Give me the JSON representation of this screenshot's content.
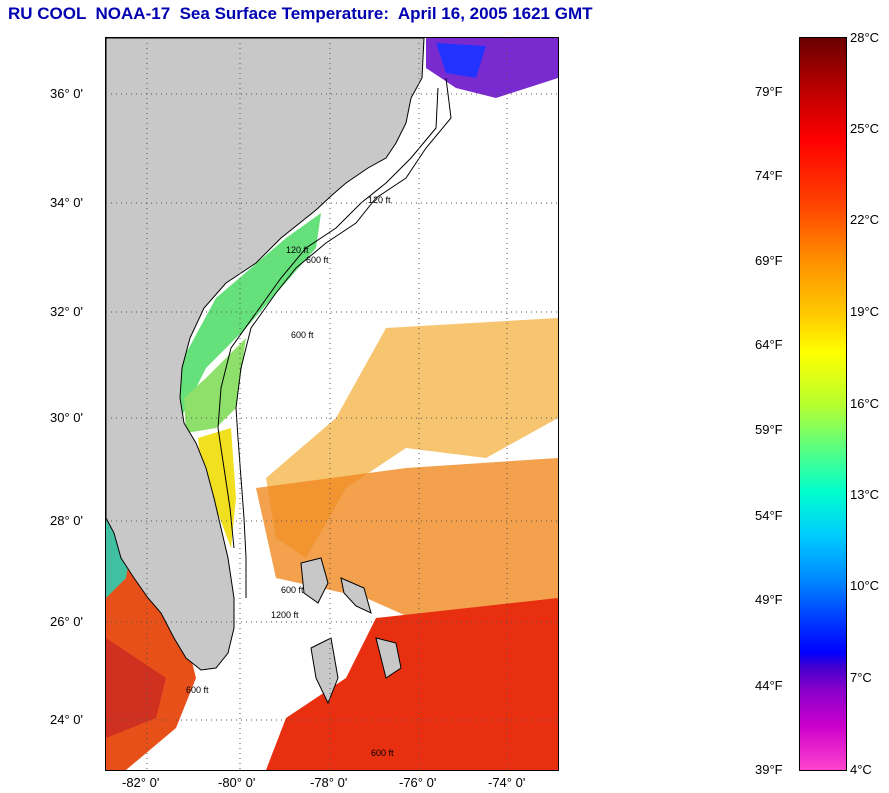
{
  "title": "RU COOL  NOAA-17  Sea Surface Temperature:  April 16, 2005 1621 GMT",
  "map": {
    "lat_labels": [
      "36° 0'",
      "34° 0'",
      "32° 0'",
      "30° 0'",
      "28° 0'",
      "26° 0'",
      "24° 0'"
    ],
    "lon_labels": [
      "-82° 0'",
      "-80° 0'",
      "-78° 0'",
      "-76° 0'",
      "-74° 0'"
    ],
    "contour_labels": [
      "120 ft",
      "600 ft",
      "120 ft",
      "600 ft",
      "1200 ft",
      "600 ft",
      "600 ft",
      "600 ft"
    ],
    "colors": {
      "land": "#c8c8c8",
      "no_data": "#ffffff",
      "grid": "#555555"
    }
  },
  "colorbar": {
    "fahrenheit_labels": [
      "79°F",
      "74°F",
      "69°F",
      "64°F",
      "59°F",
      "54°F",
      "49°F",
      "44°F",
      "39°F"
    ],
    "celsius_labels": [
      "28°C",
      "25°C",
      "22°C",
      "19°C",
      "16°C",
      "13°C",
      "10°C",
      "7°C",
      "4°C"
    ]
  }
}
